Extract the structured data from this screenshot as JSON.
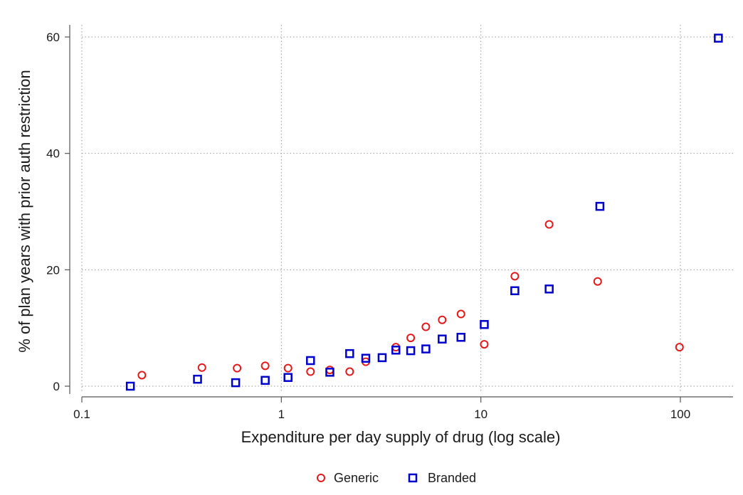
{
  "chart_data": {
    "type": "scatter",
    "title": "",
    "xlabel": "Expenditure per day supply of drug (log scale)",
    "ylabel": "% of plan years with prior auth restriction",
    "xscale": "log",
    "xlim": [
      0.1,
      180
    ],
    "ylim": [
      -1.8,
      63
    ],
    "x_ticks": [
      {
        "value": 0.1,
        "label": "0.1"
      },
      {
        "value": 1,
        "label": "1"
      },
      {
        "value": 10,
        "label": "10"
      },
      {
        "value": 100,
        "label": "100"
      }
    ],
    "y_ticks": [
      {
        "value": 0,
        "label": "0"
      },
      {
        "value": 20,
        "label": "20"
      },
      {
        "value": 40,
        "label": "40"
      },
      {
        "value": 60,
        "label": "60"
      }
    ],
    "grid": true,
    "legend_position": "bottom",
    "series": [
      {
        "name": "Generic",
        "marker": "circle",
        "color": "#e31a1c",
        "points": [
          {
            "x": 0.2,
            "y": 1.9
          },
          {
            "x": 0.4,
            "y": 3.2
          },
          {
            "x": 0.6,
            "y": 3.1
          },
          {
            "x": 0.83,
            "y": 3.5
          },
          {
            "x": 1.08,
            "y": 3.1
          },
          {
            "x": 1.4,
            "y": 2.5
          },
          {
            "x": 1.75,
            "y": 2.8
          },
          {
            "x": 2.2,
            "y": 2.5
          },
          {
            "x": 2.65,
            "y": 4.2
          },
          {
            "x": 3.75,
            "y": 6.7
          },
          {
            "x": 4.45,
            "y": 8.3
          },
          {
            "x": 5.3,
            "y": 10.2
          },
          {
            "x": 6.4,
            "y": 11.4
          },
          {
            "x": 7.95,
            "y": 12.4
          },
          {
            "x": 10.4,
            "y": 7.2
          },
          {
            "x": 14.8,
            "y": 18.9
          },
          {
            "x": 22,
            "y": 27.8
          },
          {
            "x": 38.5,
            "y": 18.0
          },
          {
            "x": 99,
            "y": 6.7
          }
        ]
      },
      {
        "name": "Branded",
        "marker": "square",
        "color": "#0000cc",
        "points": [
          {
            "x": 0.175,
            "y": 0.0
          },
          {
            "x": 0.38,
            "y": 1.2
          },
          {
            "x": 0.59,
            "y": 0.6
          },
          {
            "x": 0.83,
            "y": 1.0
          },
          {
            "x": 1.08,
            "y": 1.5
          },
          {
            "x": 1.4,
            "y": 4.4
          },
          {
            "x": 1.75,
            "y": 2.4
          },
          {
            "x": 2.2,
            "y": 5.6
          },
          {
            "x": 2.65,
            "y": 4.8
          },
          {
            "x": 3.2,
            "y": 4.9
          },
          {
            "x": 3.75,
            "y": 6.2
          },
          {
            "x": 4.45,
            "y": 6.1
          },
          {
            "x": 5.3,
            "y": 6.4
          },
          {
            "x": 6.4,
            "y": 8.1
          },
          {
            "x": 7.95,
            "y": 8.4
          },
          {
            "x": 10.4,
            "y": 10.6
          },
          {
            "x": 14.8,
            "y": 16.4
          },
          {
            "x": 22,
            "y": 16.7
          },
          {
            "x": 39.5,
            "y": 30.9
          },
          {
            "x": 155,
            "y": 59.8
          }
        ]
      }
    ]
  }
}
